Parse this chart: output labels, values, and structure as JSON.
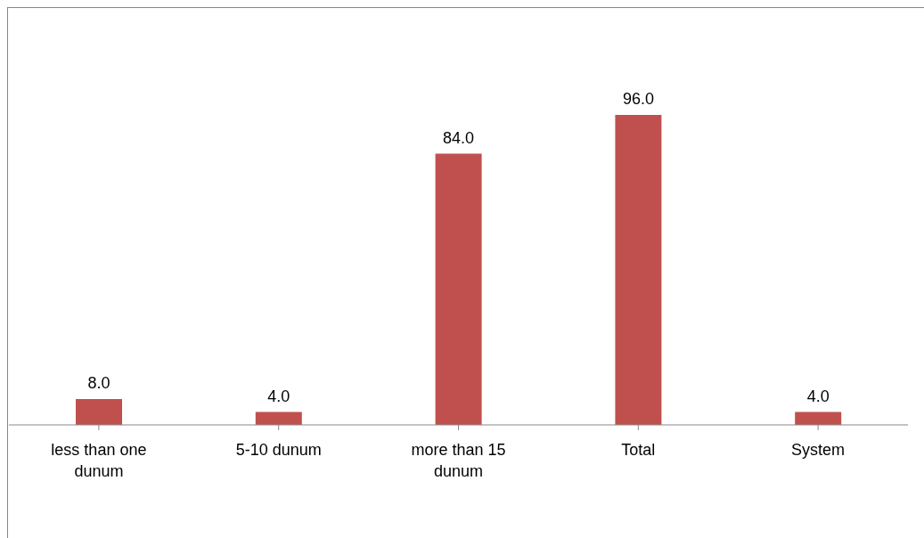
{
  "chart_data": {
    "type": "bar",
    "categories": [
      "less than one dunum",
      "5-10 dunum",
      "more than 15 dunum",
      "Total",
      "System"
    ],
    "values": [
      8.0,
      4.0,
      84.0,
      96.0,
      4.0
    ],
    "value_labels": [
      "8.0",
      "4.0",
      "84.0",
      "96.0",
      "4.0"
    ],
    "color": "#c0504d",
    "grid": false,
    "legend": false
  }
}
